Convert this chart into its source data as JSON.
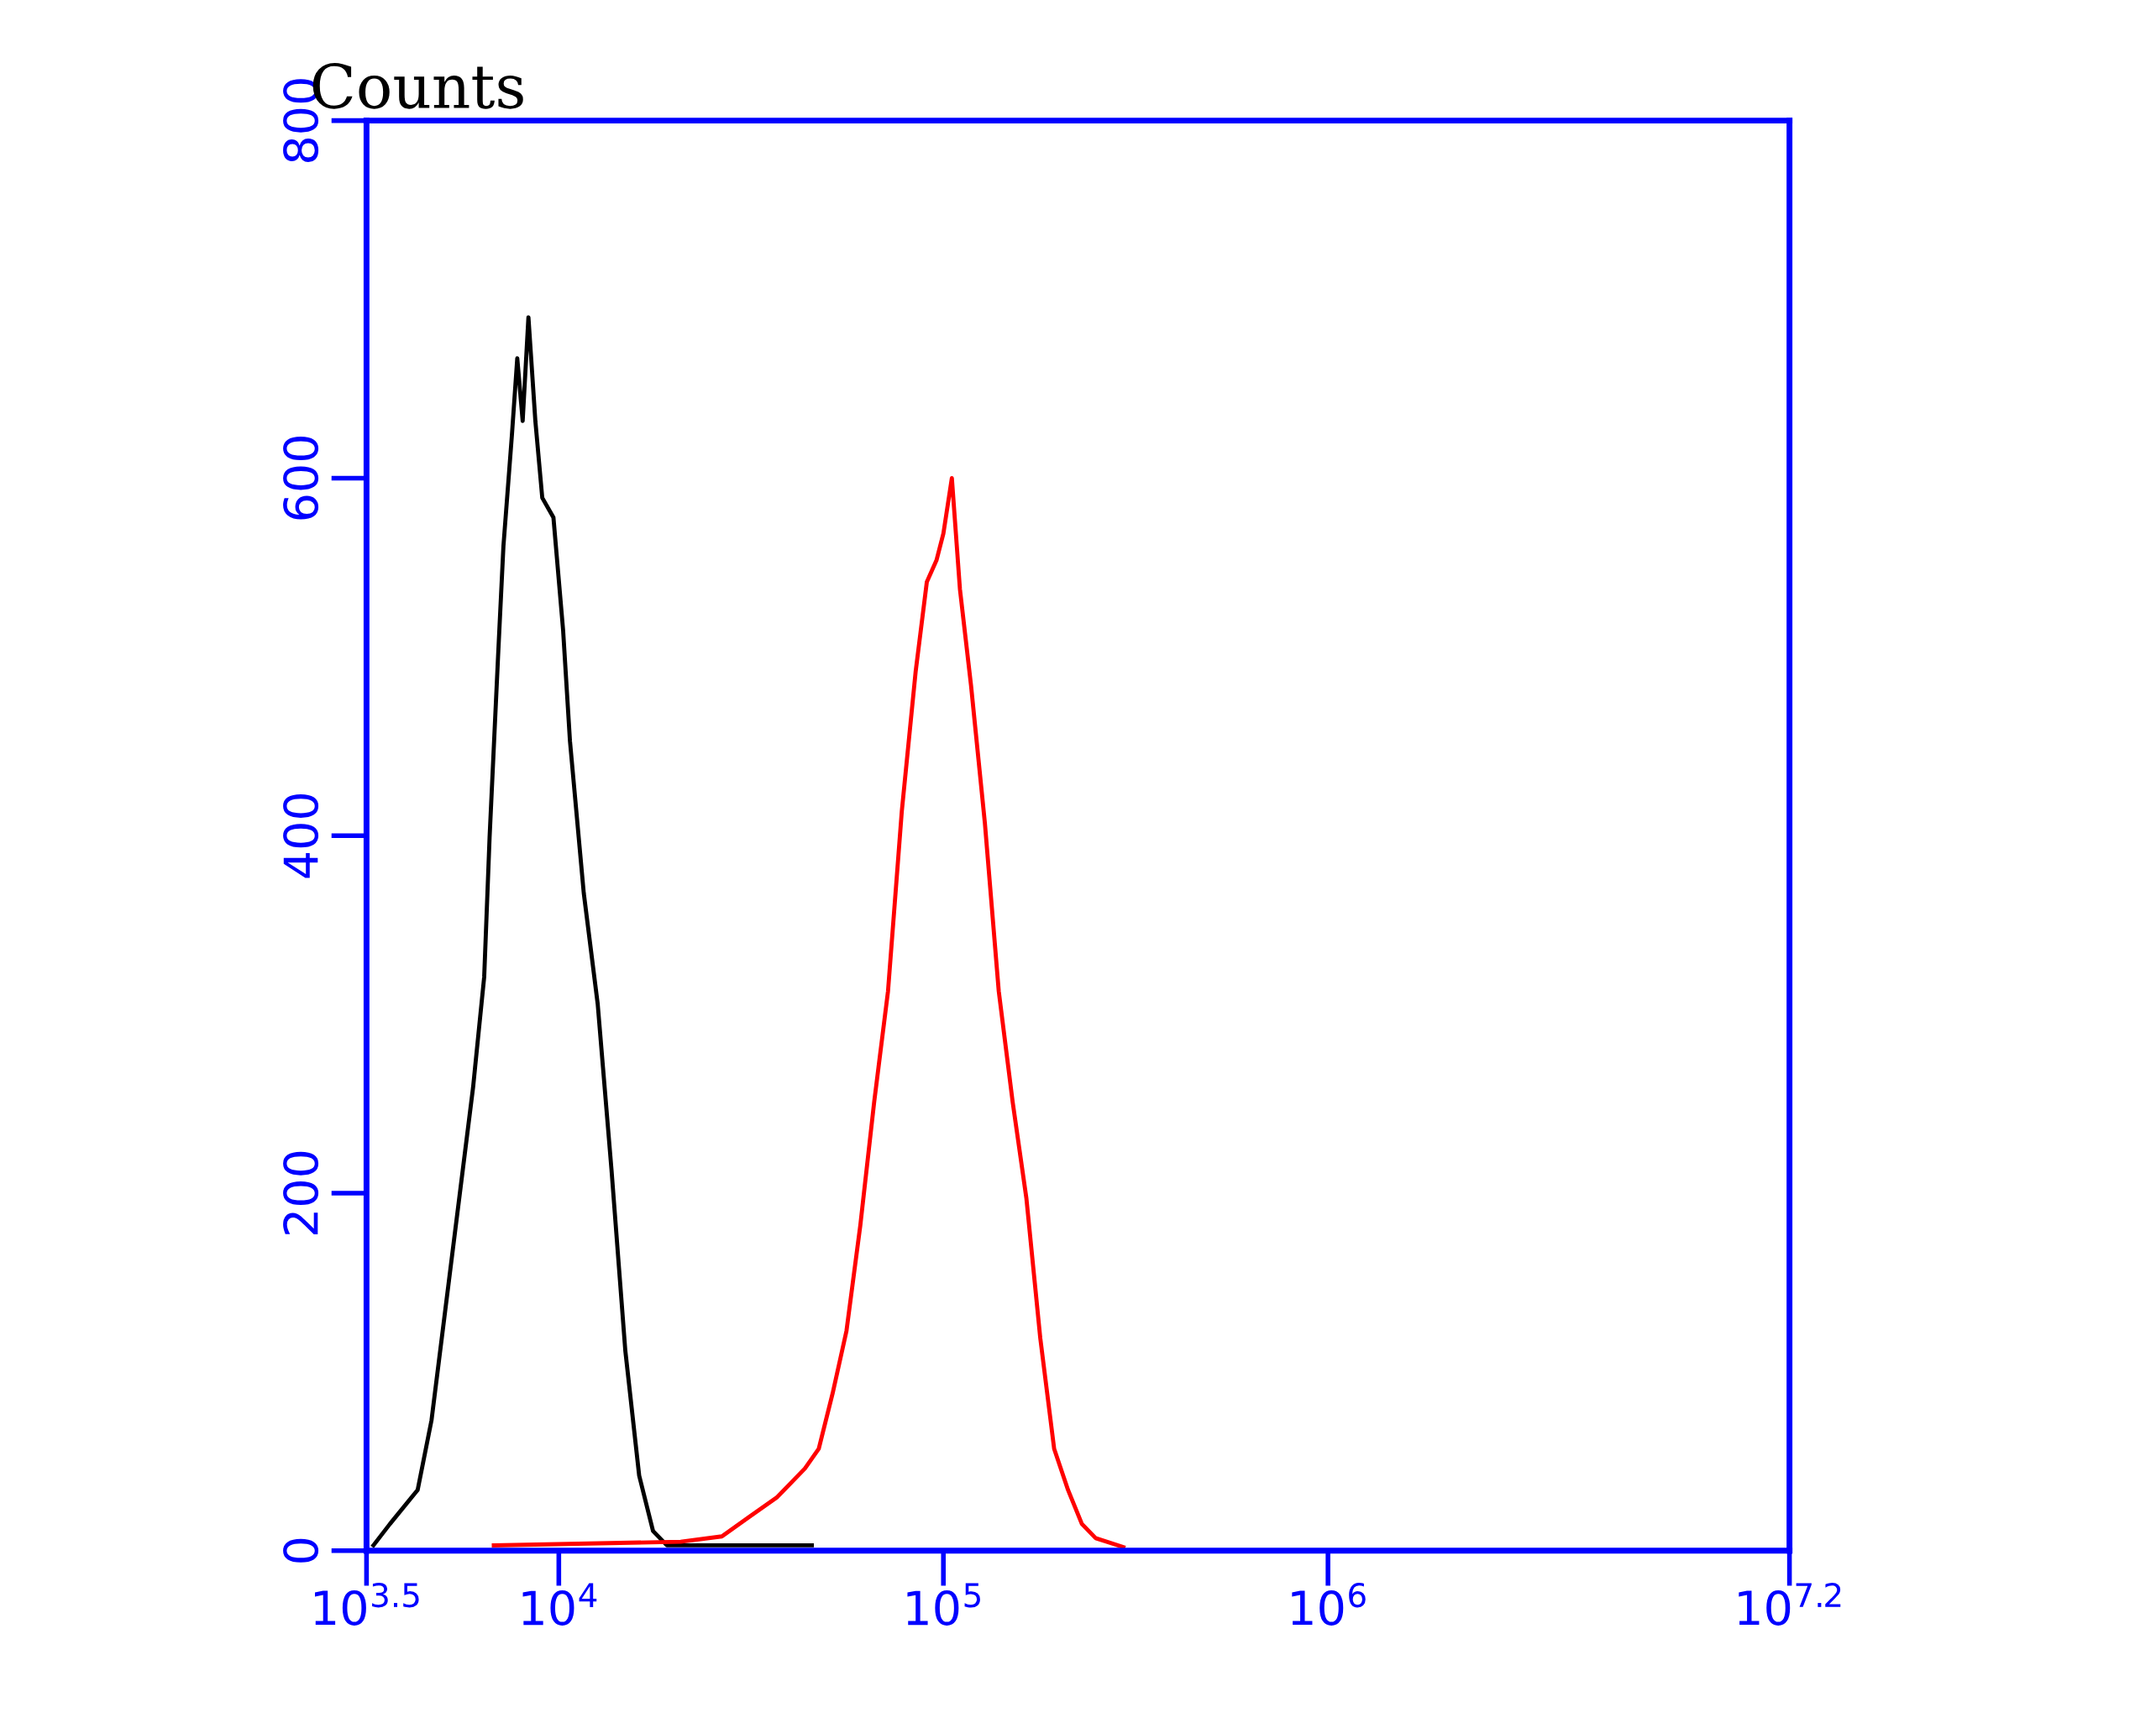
{
  "chart_data": {
    "type": "line",
    "ylabel": "Counts",
    "log": "x",
    "xlim": [
      3162.3,
      15848932
    ],
    "ylim": [
      0,
      800
    ],
    "xticks": [
      {
        "value": 3162.3,
        "label": "10$^{3.5}$"
      },
      {
        "value": 10000,
        "label": "10$^{4}$"
      },
      {
        "value": 100000,
        "label": "10$^{5}$"
      },
      {
        "value": 1000000,
        "label": "10$^{6}$"
      },
      {
        "value": 15848932,
        "label": "10$^{7.2}$"
      }
    ],
    "yticks": [
      0,
      200,
      400,
      600,
      800
    ],
    "grid": false,
    "marker": "none",
    "line_style": "solid",
    "series": [
      {
        "color": "#000000",
        "x": [
          3296,
          3639,
          4295,
          4667,
          5070,
          5508,
          5984,
          6397,
          6607,
          6950,
          7178,
          7551,
          7798,
          8054,
          8337,
          8690,
          9057,
          9683,
          10260,
          10690,
          11610,
          12620,
          13710,
          14890,
          16180,
          17580,
          19100,
          45500
        ],
        "values": [
          3,
          15,
          34,
          73,
          135,
          197,
          259,
          321,
          399,
          500,
          562,
          624,
          667,
          632,
          690,
          632,
          589,
          578,
          515,
          453,
          368,
          306,
          213,
          112,
          42,
          11,
          3,
          3
        ]
      },
      {
        "color": "#ff0000",
        "x": [
          6776,
          20750,
          26550,
          31330,
          36980,
          43650,
          47420,
          51520,
          55980,
          60810,
          66070,
          71780,
          77980,
          84720,
          90570,
          95940,
          100000,
          105200,
          110400,
          118000,
          128200,
          139300,
          151400,
          164400,
          178600,
          194100,
          210900,
          229100,
          248900,
          293800
        ],
        "values": [
          3,
          5,
          8,
          19,
          30,
          46,
          57,
          88,
          123,
          182,
          251,
          313,
          414,
          492,
          542,
          554,
          569,
          600,
          538,
          484,
          407,
          313,
          251,
          197,
          119,
          57,
          34,
          15,
          7,
          2
        ]
      }
    ]
  }
}
